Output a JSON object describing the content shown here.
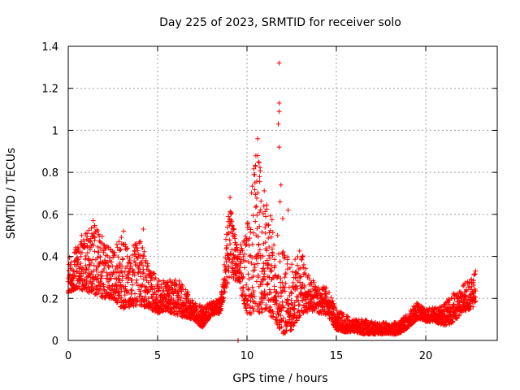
{
  "chart_data": {
    "type": "scatter",
    "title": "Day 225 of 2023, SRMTID for receiver solo",
    "xlabel": "GPS time / hours",
    "ylabel": "SRMTID / TECUs",
    "xlim": [
      0,
      24
    ],
    "ylim": [
      0,
      1.4
    ],
    "xticks": [
      0,
      5,
      10,
      15,
      20
    ],
    "xtick_labels": [
      "0",
      "5",
      "10",
      "15",
      "20"
    ],
    "yticks": [
      0,
      0.2,
      0.4,
      0.6,
      0.8,
      1.0,
      1.2,
      1.4
    ],
    "ytick_labels": [
      "0",
      "0.2",
      "0.4",
      "0.6",
      "0.8",
      "1",
      "1.2",
      "1.4"
    ],
    "grid": true,
    "marker": "+",
    "color": "#ff0000",
    "series": [
      {
        "name": "SRMTID",
        "envelope": {
          "x": [
            0,
            0.5,
            1,
            1.5,
            2,
            2.5,
            3,
            3.5,
            4,
            4.5,
            5,
            5.5,
            6,
            6.5,
            7,
            7.5,
            8,
            8.5,
            9,
            9.5,
            10,
            10.5,
            11,
            11.5,
            12,
            12.5,
            13,
            13.5,
            14,
            14.5,
            15,
            15.5,
            16,
            16.5,
            17,
            17.5,
            18,
            18.5,
            19,
            19.5,
            20,
            20.5,
            21,
            21.5,
            22,
            22.5,
            22.8
          ],
          "low": [
            0.22,
            0.25,
            0.23,
            0.22,
            0.2,
            0.2,
            0.15,
            0.16,
            0.17,
            0.15,
            0.13,
            0.14,
            0.12,
            0.11,
            0.1,
            0.06,
            0.12,
            0.13,
            0.3,
            0.28,
            0.13,
            0.12,
            0.14,
            0.1,
            0.03,
            0.05,
            0.12,
            0.14,
            0.13,
            0.12,
            0.05,
            0.04,
            0.04,
            0.03,
            0.03,
            0.03,
            0.03,
            0.03,
            0.06,
            0.1,
            0.09,
            0.09,
            0.07,
            0.08,
            0.13,
            0.15,
            0.17
          ],
          "high": [
            0.38,
            0.48,
            0.52,
            0.56,
            0.48,
            0.42,
            0.51,
            0.43,
            0.5,
            0.35,
            0.3,
            0.28,
            0.3,
            0.26,
            0.18,
            0.17,
            0.18,
            0.2,
            0.68,
            0.42,
            0.55,
            0.95,
            0.7,
            0.55,
            0.45,
            0.38,
            0.44,
            0.3,
            0.26,
            0.25,
            0.15,
            0.12,
            0.1,
            0.1,
            0.09,
            0.09,
            0.08,
            0.09,
            0.13,
            0.18,
            0.15,
            0.16,
            0.17,
            0.22,
            0.26,
            0.3,
            0.34
          ]
        },
        "spikes": [
          {
            "x": 11.8,
            "y": 1.32
          },
          {
            "x": 11.8,
            "y": 1.13
          },
          {
            "x": 11.8,
            "y": 1.09
          },
          {
            "x": 11.75,
            "y": 1.03
          },
          {
            "x": 11.8,
            "y": 0.92
          },
          {
            "x": 10.6,
            "y": 0.96
          },
          {
            "x": 10.6,
            "y": 0.88
          },
          {
            "x": 10.65,
            "y": 0.85
          },
          {
            "x": 10.7,
            "y": 0.78
          },
          {
            "x": 11.9,
            "y": 0.74
          },
          {
            "x": 11.85,
            "y": 0.66
          },
          {
            "x": 12.3,
            "y": 0.62
          },
          {
            "x": 9.05,
            "y": 0.68
          },
          {
            "x": 9.1,
            "y": 0.61
          },
          {
            "x": 12.0,
            "y": 0.58
          },
          {
            "x": 1.4,
            "y": 0.57
          },
          {
            "x": 3.1,
            "y": 0.52
          },
          {
            "x": 4.2,
            "y": 0.53
          },
          {
            "x": 9.5,
            "y": 0.0
          }
        ]
      }
    ]
  }
}
